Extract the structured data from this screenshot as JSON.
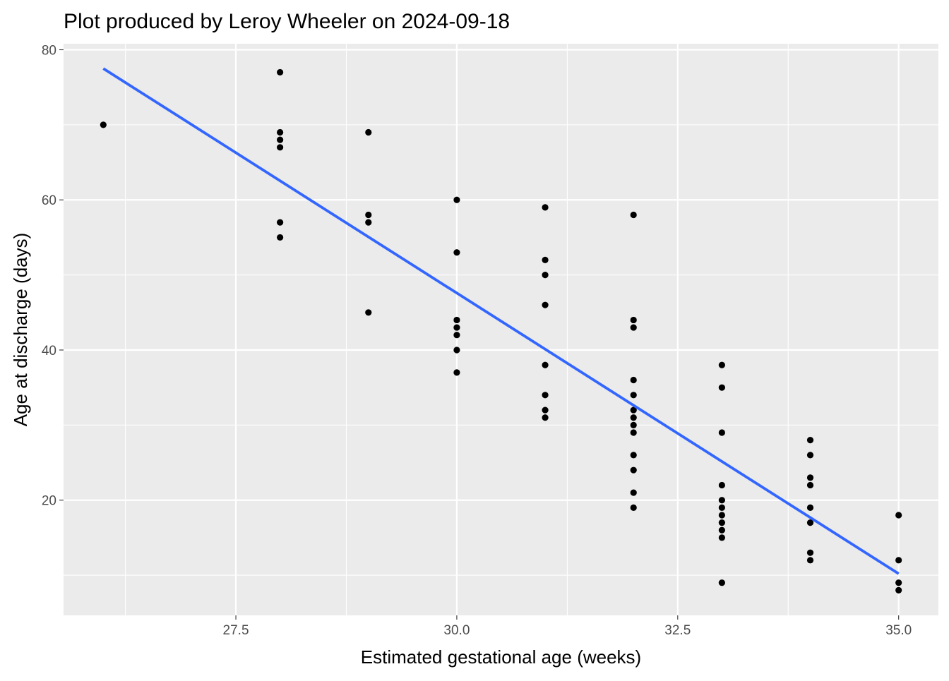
{
  "chart_data": {
    "type": "scatter",
    "title": "Plot produced by Leroy Wheeler on 2024-09-18",
    "xlabel": "Estimated gestational age (weeks)",
    "ylabel": "Age at discharge (days)",
    "xlim": [
      25.55,
      35.45
    ],
    "ylim": [
      4.65,
      80.8
    ],
    "x_ticks": [
      27.5,
      30.0,
      32.5,
      35.0
    ],
    "x_tick_labels": [
      "27.5",
      "30.0",
      "32.5",
      "35.0"
    ],
    "y_ticks": [
      20,
      40,
      60,
      80
    ],
    "y_tick_labels": [
      "20",
      "40",
      "60",
      "80"
    ],
    "grid": true,
    "legend": "none",
    "colors": {
      "panel_background": "#EBEBEB",
      "grid_major": "#FFFFFF",
      "points": "#000000",
      "fit_line": "#3366FF"
    },
    "points": [
      [
        26,
        70
      ],
      [
        28,
        77
      ],
      [
        28,
        69
      ],
      [
        28,
        68
      ],
      [
        28,
        67
      ],
      [
        28,
        57
      ],
      [
        28,
        55
      ],
      [
        29,
        69
      ],
      [
        29,
        58
      ],
      [
        29,
        57
      ],
      [
        29,
        45
      ],
      [
        30,
        60
      ],
      [
        30,
        53
      ],
      [
        30,
        44
      ],
      [
        30,
        43
      ],
      [
        30,
        42
      ],
      [
        30,
        40
      ],
      [
        30,
        37
      ],
      [
        31,
        59
      ],
      [
        31,
        52
      ],
      [
        31,
        50
      ],
      [
        31,
        46
      ],
      [
        31,
        38
      ],
      [
        31,
        34
      ],
      [
        31,
        32
      ],
      [
        31,
        31
      ],
      [
        32,
        58
      ],
      [
        32,
        44
      ],
      [
        32,
        43
      ],
      [
        32,
        36
      ],
      [
        32,
        34
      ],
      [
        32,
        32
      ],
      [
        32,
        31
      ],
      [
        32,
        30
      ],
      [
        32,
        29
      ],
      [
        32,
        26
      ],
      [
        32,
        24
      ],
      [
        32,
        21
      ],
      [
        32,
        19
      ],
      [
        33,
        38
      ],
      [
        33,
        35
      ],
      [
        33,
        29
      ],
      [
        33,
        22
      ],
      [
        33,
        20
      ],
      [
        33,
        19
      ],
      [
        33,
        18
      ],
      [
        33,
        17
      ],
      [
        33,
        16
      ],
      [
        33,
        15
      ],
      [
        33,
        9
      ],
      [
        34,
        28
      ],
      [
        34,
        26
      ],
      [
        34,
        23
      ],
      [
        34,
        22
      ],
      [
        34,
        19
      ],
      [
        34,
        17
      ],
      [
        34,
        13
      ],
      [
        34,
        12
      ],
      [
        35,
        18
      ],
      [
        35,
        12
      ],
      [
        35,
        9
      ],
      [
        35,
        8
      ]
    ],
    "fit_line": {
      "method": "linear",
      "x": [
        26,
        35
      ],
      "y": [
        77.5,
        10.2
      ]
    }
  }
}
